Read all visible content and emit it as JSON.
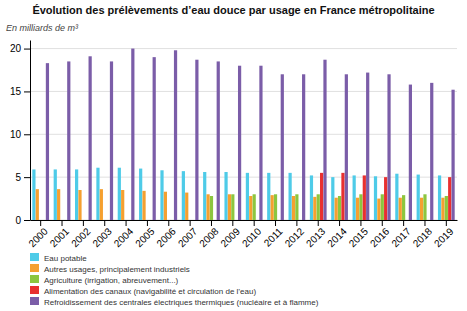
{
  "chart_data": {
    "type": "bar",
    "title": "Évolution des prélèvements d’eau douce par usage en France métropolitaine",
    "ylabel": "En milliards de m³",
    "categories": [
      "2000",
      "2001",
      "2002",
      "2003",
      "2004",
      "2005",
      "2006",
      "2007",
      "2008",
      "2009",
      "2010",
      "2011",
      "2012",
      "2013",
      "2014",
      "2015",
      "2016",
      "2017",
      "2018",
      "2019"
    ],
    "series": [
      {
        "name": "Eau potable",
        "color": "#4ecbe8",
        "values": [
          5.9,
          5.9,
          5.9,
          6.1,
          6.1,
          6.0,
          5.8,
          5.7,
          5.6,
          5.6,
          5.5,
          5.5,
          5.5,
          5.2,
          5.0,
          5.2,
          5.1,
          5.4,
          5.3,
          5.2
        ]
      },
      {
        "name": "Autres usages, principalement industriels",
        "color": "#f5a030",
        "values": [
          3.6,
          3.6,
          3.5,
          3.6,
          3.5,
          3.4,
          3.3,
          3.2,
          3.0,
          3.0,
          2.8,
          2.9,
          2.8,
          2.7,
          2.6,
          2.6,
          2.5,
          2.6,
          2.6,
          2.6
        ]
      },
      {
        "name": "Agriculture (irrigation, abreuvement...)",
        "color": "#8cc63f",
        "values": [
          0.0,
          0.0,
          0.0,
          0.0,
          0.0,
          0.0,
          0.0,
          0.0,
          2.8,
          3.0,
          3.0,
          3.0,
          3.0,
          3.0,
          2.8,
          3.0,
          3.0,
          2.9,
          3.0,
          2.8
        ]
      },
      {
        "name": "Alimentation des canaux (navigabilité et circulation de l’eau)",
        "color": "#e83030",
        "values": [
          0.0,
          0.0,
          0.0,
          0.0,
          0.0,
          0.0,
          0.0,
          0.0,
          0.0,
          0.0,
          0.0,
          0.0,
          0.0,
          5.5,
          5.5,
          5.2,
          5.0,
          0.0,
          0.0,
          5.0
        ]
      },
      {
        "name": "Refroidissement des centrales électriques thermiques (nucléaire et à flamme)",
        "color": "#7b5da8",
        "values": [
          18.3,
          18.5,
          19.1,
          18.5,
          20.0,
          19.0,
          19.8,
          18.7,
          18.5,
          18.0,
          18.0,
          17.0,
          17.0,
          18.7,
          17.0,
          17.2,
          17.0,
          15.8,
          16.0,
          15.2
        ]
      }
    ],
    "ylim": [
      0,
      21
    ],
    "yticks": [
      0,
      5,
      10,
      15,
      20
    ],
    "grid": true,
    "legend": "bottom"
  }
}
